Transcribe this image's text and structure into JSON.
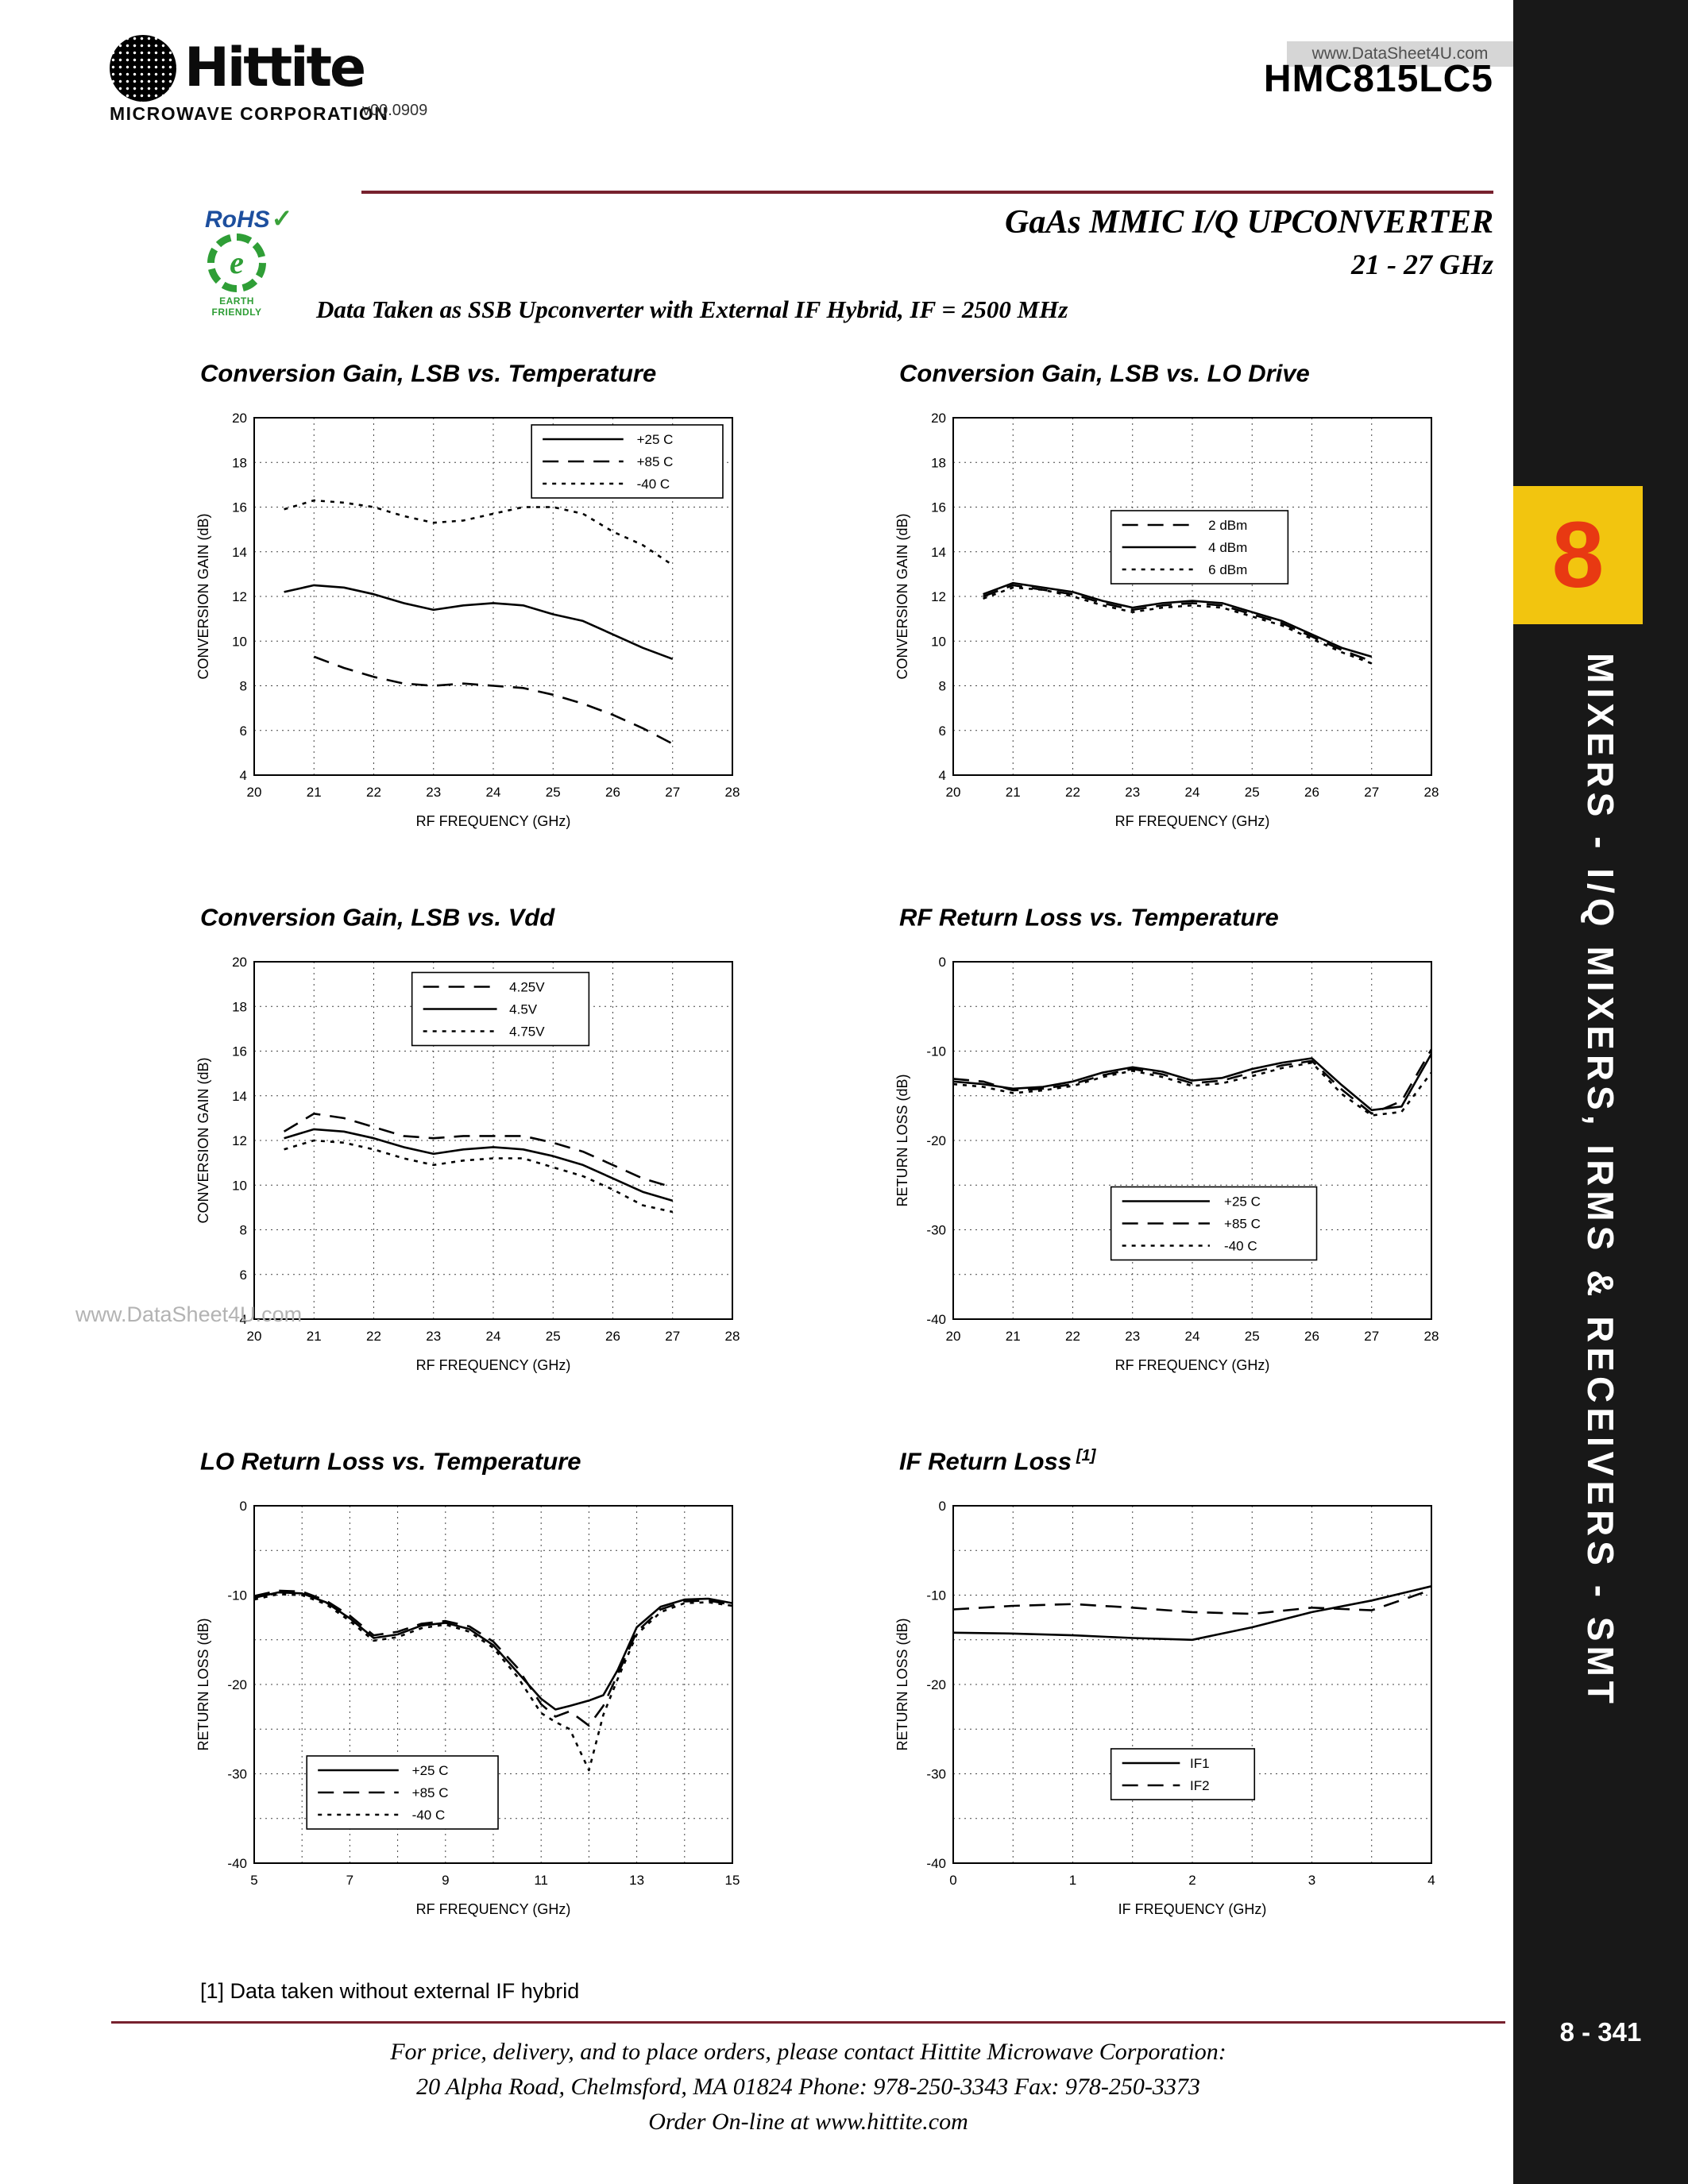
{
  "header": {
    "logo_word": "Hittite",
    "logo_sub": "MICROWAVE CORPORATION",
    "doc_version": "v00.0909",
    "watermark": "www.DataSheet4U.com",
    "part_number": "HMC815LC5",
    "title_line1": "GaAs MMIC I/Q UPCONVERTER",
    "title_line2": "21 - 27 GHz",
    "rohs": "RoHS",
    "rohs_check": "✓",
    "earth_letter": "e",
    "earth_friendly": "EARTH FRIENDLY",
    "condition_note": "Data Taken as SSB Upconverter with External IF Hybrid, IF = 2500 MHz"
  },
  "sidebar": {
    "tab_number": "8",
    "category": "MIXERS - I/Q MIXERS, IRMS & RECEIVERS - SMT",
    "page_number": "8 - 341",
    "tab_bg": "#f2c50f",
    "tab_fg": "#e83912",
    "bar_bg": "#181818"
  },
  "colors": {
    "header_rule": "#77212e",
    "series": "#000000"
  },
  "watermark_left": "www.DataSheet4U.com",
  "footnote": "[1] Data taken without external IF hybrid",
  "footer": {
    "line1": "For price, delivery, and to place orders, please contact Hittite Microwave Corporation:",
    "line2": "20 Alpha Road, Chelmsford, MA 01824 Phone: 978-250-3343  Fax: 978-250-3373",
    "line3": "Order On-line at www.hittite.com"
  },
  "chart_data": [
    {
      "type": "line",
      "title": "Conversion Gain, LSB vs. Temperature",
      "title_sup": "",
      "xlabel": "RF FREQUENCY (GHz)",
      "ylabel": "CONVERSION GAIN (dB)",
      "xlim": [
        20,
        28
      ],
      "ylim": [
        4,
        20
      ],
      "xgrid": 1,
      "ygrid": 2,
      "xlabel_step": 1,
      "ylabel_step": 2,
      "legend": {
        "x": 0.58,
        "y": 0.02,
        "w": 0.4
      },
      "series": [
        {
          "name": "+25 C",
          "style": "solid",
          "x": [
            20.5,
            21,
            21.5,
            22,
            22.5,
            23,
            23.5,
            24,
            24.5,
            25,
            25.5,
            26,
            26.5,
            27
          ],
          "y": [
            12.2,
            12.5,
            12.4,
            12.1,
            11.7,
            11.4,
            11.6,
            11.7,
            11.6,
            11.2,
            10.9,
            10.3,
            9.7,
            9.2
          ]
        },
        {
          "name": "+85 C",
          "style": "dash",
          "x": [
            21,
            21.5,
            22,
            22.5,
            23,
            23.5,
            24,
            24.5,
            25,
            25.5,
            26,
            26.5,
            27
          ],
          "y": [
            9.3,
            8.8,
            8.4,
            8.1,
            8.0,
            8.1,
            8.0,
            7.9,
            7.6,
            7.2,
            6.7,
            6.1,
            5.4
          ]
        },
        {
          "name": "-40 C",
          "style": "dot",
          "x": [
            20.5,
            21,
            21.5,
            22,
            22.5,
            23,
            23.5,
            24,
            24.5,
            25,
            25.5,
            26,
            26.5,
            27
          ],
          "y": [
            15.9,
            16.3,
            16.2,
            16.0,
            15.6,
            15.3,
            15.4,
            15.7,
            16.0,
            16.0,
            15.7,
            14.9,
            14.3,
            13.4
          ]
        }
      ]
    },
    {
      "type": "line",
      "title": "Conversion Gain, LSB vs. LO Drive",
      "title_sup": "",
      "xlabel": "RF FREQUENCY (GHz)",
      "ylabel": "CONVERSION GAIN (dB)",
      "xlim": [
        20,
        28
      ],
      "ylim": [
        4,
        20
      ],
      "xgrid": 1,
      "ygrid": 2,
      "xlabel_step": 1,
      "ylabel_step": 2,
      "legend": {
        "x": 0.33,
        "y": 0.26,
        "w": 0.37
      },
      "series": [
        {
          "name": "2 dBm",
          "style": "dash",
          "x": [
            20.5,
            21,
            21.5,
            22,
            22.5,
            23,
            23.5,
            24,
            24.5,
            25,
            25.5,
            26,
            26.5,
            27
          ],
          "y": [
            12.0,
            12.5,
            12.3,
            12.1,
            11.7,
            11.4,
            11.6,
            11.7,
            11.6,
            11.2,
            10.8,
            10.2,
            9.6,
            9.1
          ]
        },
        {
          "name": "4 dBm",
          "style": "solid",
          "x": [
            20.5,
            21,
            21.5,
            22,
            22.5,
            23,
            23.5,
            24,
            24.5,
            25,
            25.5,
            26,
            26.5,
            27
          ],
          "y": [
            12.1,
            12.6,
            12.4,
            12.2,
            11.8,
            11.5,
            11.7,
            11.8,
            11.7,
            11.3,
            10.9,
            10.3,
            9.7,
            9.3
          ]
        },
        {
          "name": "6 dBm",
          "style": "dot",
          "x": [
            20.5,
            21,
            21.5,
            22,
            22.5,
            23,
            23.5,
            24,
            24.5,
            25,
            25.5,
            26,
            26.5,
            27
          ],
          "y": [
            11.9,
            12.4,
            12.3,
            12.0,
            11.6,
            11.3,
            11.5,
            11.6,
            11.5,
            11.1,
            10.7,
            10.1,
            9.5,
            9.0
          ]
        }
      ]
    },
    {
      "type": "line",
      "title": "Conversion Gain, LSB vs. Vdd",
      "title_sup": "",
      "xlabel": "RF FREQUENCY (GHz)",
      "ylabel": "CONVERSION GAIN (dB)",
      "xlim": [
        20,
        28
      ],
      "ylim": [
        4,
        20
      ],
      "xgrid": 1,
      "ygrid": 2,
      "xlabel_step": 1,
      "ylabel_step": 2,
      "legend": {
        "x": 0.33,
        "y": 0.03,
        "w": 0.37
      },
      "series": [
        {
          "name": "4.25V",
          "style": "dash",
          "x": [
            20.5,
            21,
            21.5,
            22,
            22.5,
            23,
            23.5,
            24,
            24.5,
            25,
            25.5,
            26,
            26.5,
            27
          ],
          "y": [
            12.4,
            13.2,
            13.0,
            12.6,
            12.2,
            12.1,
            12.2,
            12.2,
            12.2,
            11.9,
            11.5,
            10.9,
            10.3,
            9.9
          ]
        },
        {
          "name": "4.5V",
          "style": "solid",
          "x": [
            20.5,
            21,
            21.5,
            22,
            22.5,
            23,
            23.5,
            24,
            24.5,
            25,
            25.5,
            26,
            26.5,
            27
          ],
          "y": [
            12.1,
            12.5,
            12.4,
            12.1,
            11.7,
            11.4,
            11.6,
            11.7,
            11.6,
            11.3,
            10.9,
            10.3,
            9.7,
            9.3
          ]
        },
        {
          "name": "4.75V",
          "style": "dot",
          "x": [
            20.5,
            21,
            21.5,
            22,
            22.5,
            23,
            23.5,
            24,
            24.5,
            25,
            25.5,
            26,
            26.5,
            27
          ],
          "y": [
            11.6,
            12.0,
            11.9,
            11.6,
            11.2,
            10.9,
            11.1,
            11.2,
            11.2,
            10.8,
            10.4,
            9.8,
            9.1,
            8.8
          ]
        }
      ]
    },
    {
      "type": "line",
      "title": "RF Return Loss vs. Temperature",
      "title_sup": "",
      "xlabel": "RF FREQUENCY (GHz)",
      "ylabel": "RETURN LOSS (dB)",
      "xlim": [
        20,
        28
      ],
      "ylim": [
        -40,
        0
      ],
      "xgrid": 1,
      "ygrid": 5,
      "xlabel_step": 1,
      "ylabel_step": 10,
      "legend": {
        "x": 0.33,
        "y": 0.63,
        "w": 0.43
      },
      "series": [
        {
          "name": "+25 C",
          "style": "solid",
          "x": [
            20,
            20.5,
            21,
            21.5,
            22,
            22.5,
            23,
            23.5,
            24,
            24.5,
            25,
            25.5,
            26,
            26.5,
            27,
            27.5,
            28
          ],
          "y": [
            -13.4,
            -13.7,
            -14.2,
            -14.0,
            -13.4,
            -12.4,
            -11.8,
            -12.3,
            -13.3,
            -13.0,
            -12.0,
            -11.3,
            -10.8,
            -13.8,
            -16.6,
            -16.2,
            -10.3
          ]
        },
        {
          "name": "+85 C",
          "style": "dash",
          "x": [
            20,
            20.5,
            21,
            21.5,
            22,
            22.5,
            23,
            23.5,
            24,
            24.5,
            25,
            25.5,
            26,
            26.5,
            27,
            27.5,
            28
          ],
          "y": [
            -13.1,
            -13.4,
            -14.4,
            -14.2,
            -13.7,
            -12.7,
            -12.0,
            -12.6,
            -13.6,
            -13.3,
            -12.4,
            -11.6,
            -11.1,
            -14.3,
            -17.0,
            -15.6,
            -9.8
          ]
        },
        {
          "name": "-40 C",
          "style": "dot",
          "x": [
            20,
            20.5,
            21,
            21.5,
            22,
            22.5,
            23,
            23.5,
            24,
            24.5,
            25,
            25.5,
            26,
            26.5,
            27,
            27.5,
            28
          ],
          "y": [
            -13.7,
            -14.0,
            -14.7,
            -14.4,
            -13.9,
            -12.9,
            -12.2,
            -12.9,
            -13.9,
            -13.6,
            -12.8,
            -11.9,
            -11.3,
            -14.8,
            -17.2,
            -16.8,
            -12.4
          ]
        }
      ]
    },
    {
      "type": "line",
      "title": "LO Return Loss vs. Temperature",
      "title_sup": "",
      "xlabel": "RF FREQUENCY (GHz)",
      "ylabel": "RETURN LOSS (dB)",
      "xlim": [
        5,
        15
      ],
      "ylim": [
        -40,
        0
      ],
      "xgrid": 1,
      "ygrid": 5,
      "xlabel_step": 2,
      "ylabel_step": 10,
      "legend": {
        "x": 0.11,
        "y": 0.7,
        "w": 0.4
      },
      "series": [
        {
          "name": "+25 C",
          "style": "solid",
          "x": [
            5,
            5.5,
            6,
            6.5,
            7,
            7.5,
            8,
            8.5,
            9,
            9.5,
            10,
            10.5,
            11,
            11.3,
            11.6,
            12,
            12.3,
            12.6,
            13,
            13.5,
            14,
            14.5,
            15
          ],
          "y": [
            -10.3,
            -9.7,
            -9.8,
            -10.8,
            -12.6,
            -14.8,
            -14.4,
            -13.4,
            -13.1,
            -13.8,
            -15.6,
            -18.6,
            -21.6,
            -22.8,
            -22.4,
            -21.8,
            -21.2,
            -18.4,
            -13.6,
            -11.3,
            -10.5,
            -10.4,
            -10.9
          ]
        },
        {
          "name": "+85 C",
          "style": "dash",
          "x": [
            5,
            5.5,
            6,
            6.5,
            7,
            7.5,
            8,
            8.5,
            9,
            9.5,
            10,
            10.5,
            11,
            11.3,
            11.6,
            12,
            12.3,
            12.6,
            13,
            13.5,
            14,
            14.5,
            15
          ],
          "y": [
            -10.1,
            -9.5,
            -9.6,
            -10.6,
            -12.3,
            -14.5,
            -14.1,
            -13.2,
            -12.9,
            -13.5,
            -15.2,
            -18.1,
            -22.2,
            -23.6,
            -23.0,
            -24.6,
            -22.4,
            -18.9,
            -14.1,
            -11.6,
            -10.7,
            -10.6,
            -11.1
          ]
        },
        {
          "name": "-40 C",
          "style": "dot",
          "x": [
            5,
            5.5,
            6,
            6.5,
            7,
            7.5,
            8,
            8.5,
            9,
            9.5,
            10,
            10.5,
            11,
            11.3,
            11.6,
            12,
            12.3,
            12.6,
            13,
            13.5,
            14,
            14.5,
            15
          ],
          "y": [
            -10.5,
            -9.9,
            -10.0,
            -11.0,
            -12.9,
            -15.1,
            -14.7,
            -13.7,
            -13.3,
            -14.1,
            -15.9,
            -19.1,
            -23.2,
            -24.2,
            -25.0,
            -29.6,
            -23.4,
            -19.4,
            -14.4,
            -11.9,
            -10.9,
            -10.8,
            -11.2
          ]
        }
      ]
    },
    {
      "type": "line",
      "title": "IF Return Loss",
      "title_sup": "[1]",
      "xlabel": "IF FREQUENCY (GHz)",
      "ylabel": "RETURN LOSS (dB)",
      "xlim": [
        0,
        4
      ],
      "ylim": [
        -40,
        0
      ],
      "xgrid": 0.5,
      "ygrid": 5,
      "xlabel_step": 1,
      "ylabel_step": 10,
      "legend": {
        "x": 0.33,
        "y": 0.68,
        "w": 0.3
      },
      "series": [
        {
          "name": "IF1",
          "style": "solid",
          "x": [
            0,
            0.5,
            1,
            1.5,
            2,
            2.5,
            3,
            3.5,
            4
          ],
          "y": [
            -14.2,
            -14.3,
            -14.5,
            -14.8,
            -15.0,
            -13.6,
            -11.9,
            -10.6,
            -9.0
          ]
        },
        {
          "name": "IF2",
          "style": "dash",
          "x": [
            0,
            0.5,
            1,
            1.5,
            2,
            2.5,
            3,
            3.5,
            4
          ],
          "y": [
            -11.6,
            -11.2,
            -11.0,
            -11.4,
            -11.9,
            -12.1,
            -11.4,
            -11.7,
            -9.4
          ]
        }
      ]
    }
  ]
}
